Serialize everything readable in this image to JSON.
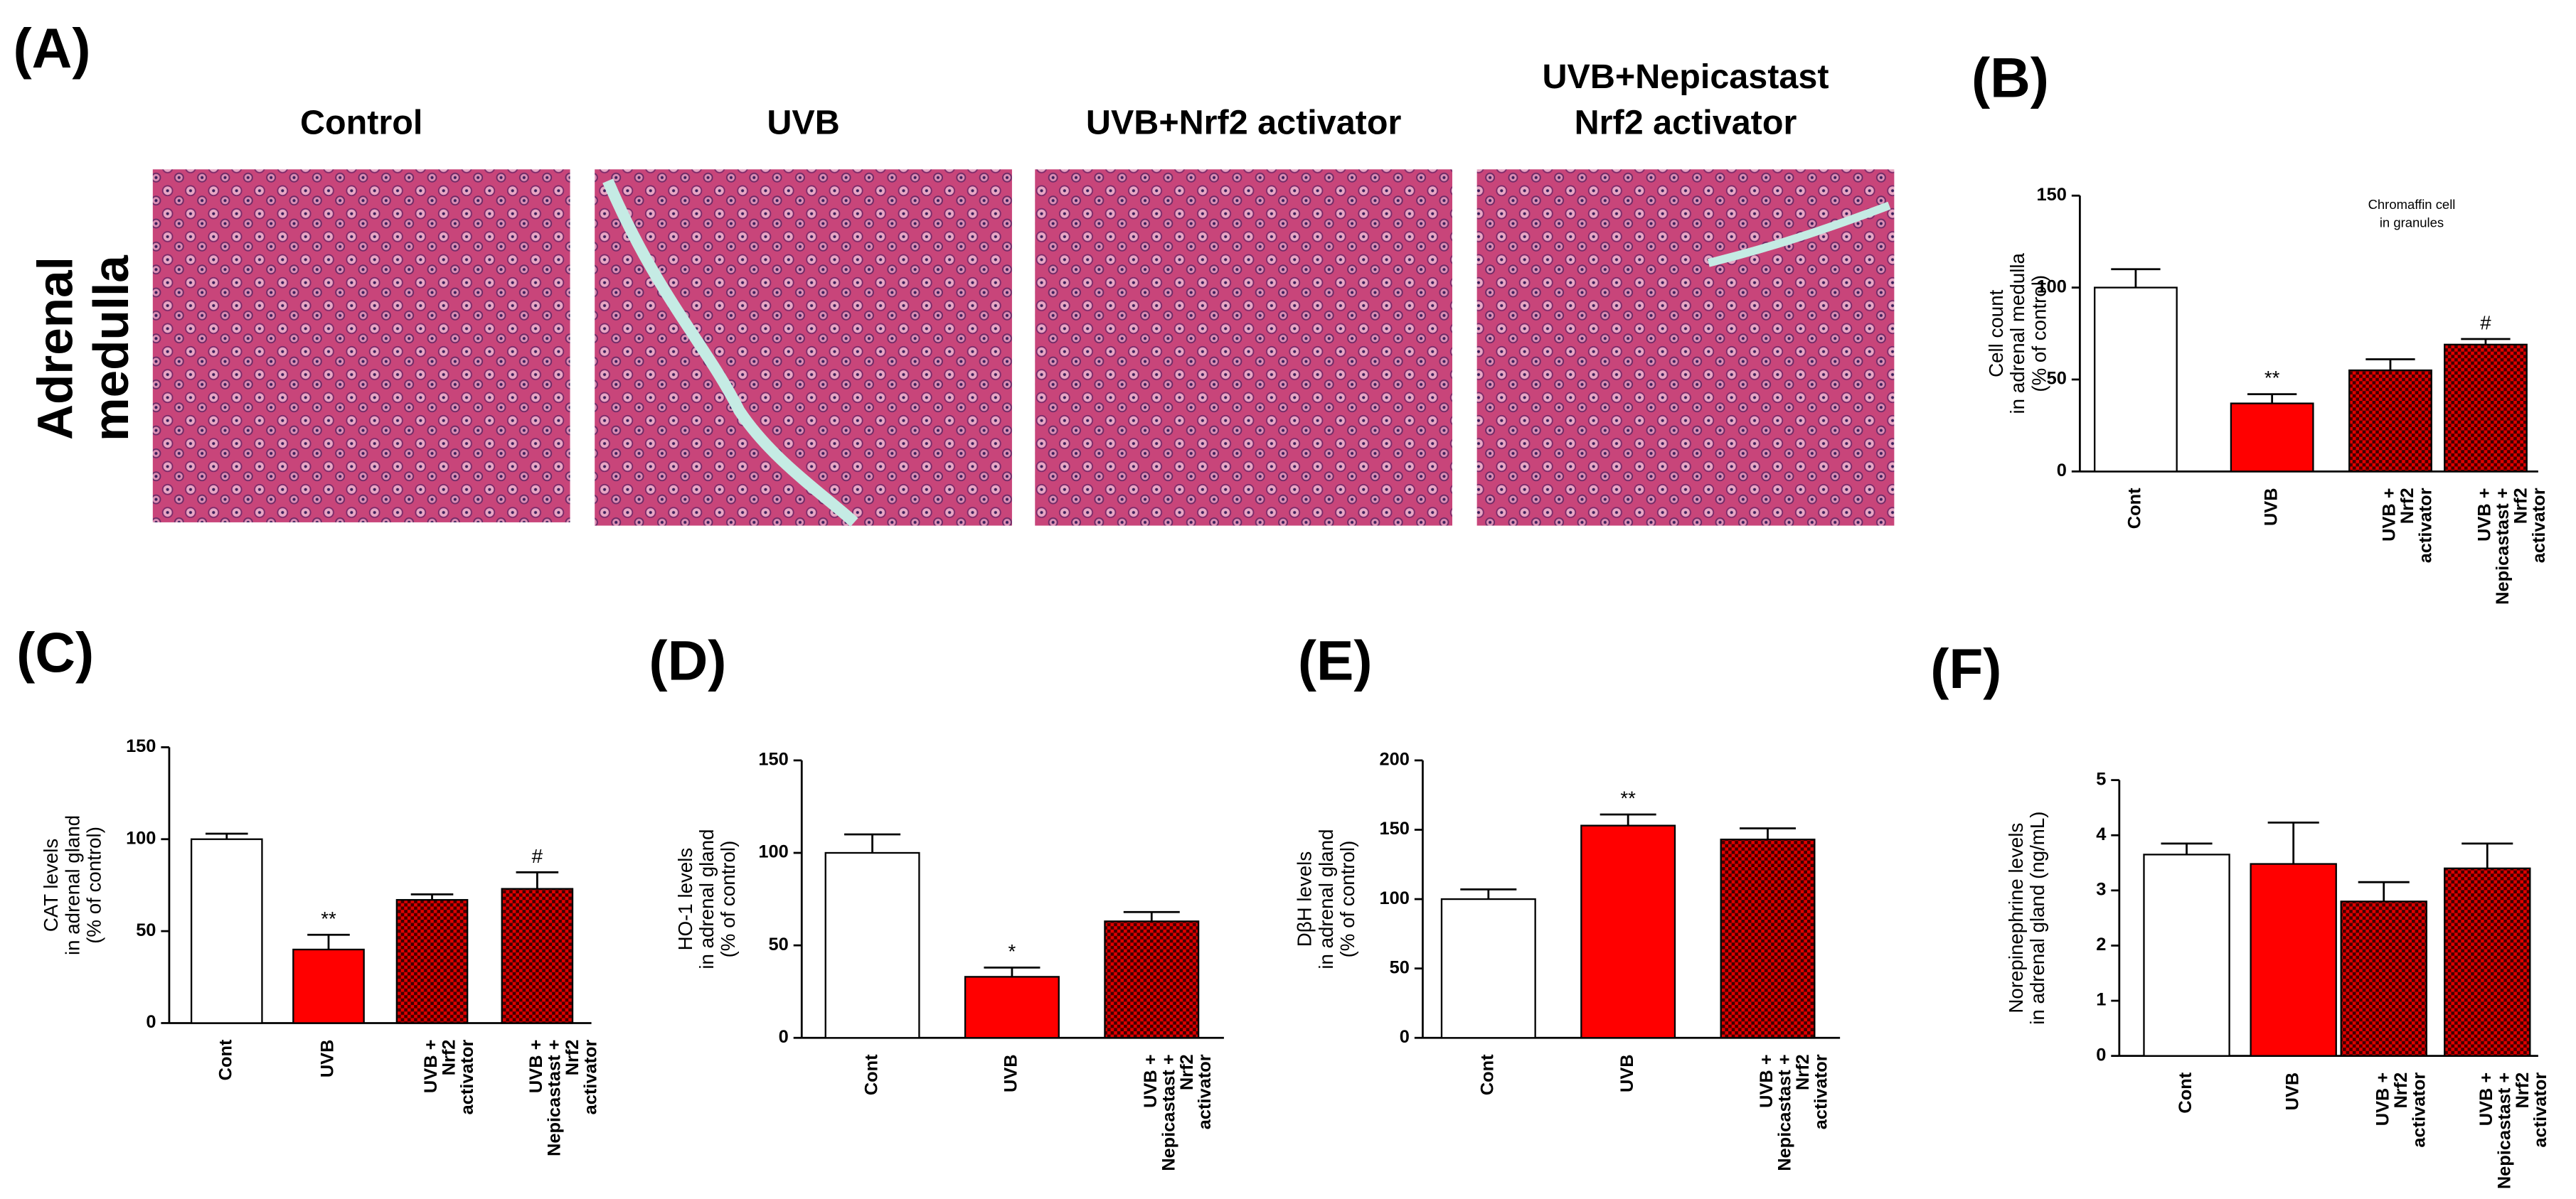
{
  "figure": {
    "panel": "(A)",
    "row_label": [
      "Adrenal",
      "medulla"
    ],
    "images": [
      {
        "title": [
          "Control"
        ]
      },
      {
        "title": [
          "UVB"
        ]
      },
      {
        "title": [
          "UVB+Nrf2 activator"
        ]
      },
      {
        "title": [
          "UVB+Nepicastast",
          "Nrf2 activator"
        ]
      }
    ]
  },
  "chart_data": [
    {
      "type": "bar",
      "panel": "(B)",
      "y_label": [
        "Cell count",
        "in adrenal medulla",
        "(% of control)"
      ],
      "note": [
        "Chromaffin cell",
        "in granules"
      ],
      "categories": [
        [
          "Cont"
        ],
        [
          "UVB"
        ],
        [
          "UVB +",
          "Nrf2",
          "activator"
        ],
        [
          "UVB +",
          "Nepicastast +",
          "Nrf2",
          "activator"
        ]
      ],
      "values": [
        100,
        37,
        55,
        69
      ],
      "errors": [
        10,
        5,
        6,
        3
      ],
      "marks": [
        null,
        "**",
        null,
        "#"
      ],
      "colors": [
        "#ffffff",
        "#ff0000",
        "#ff0000",
        "#ff0000"
      ],
      "patterns": [
        "none",
        "none",
        "checker",
        "checker"
      ],
      "ylim": [
        0,
        150
      ],
      "yticks": [
        0,
        50,
        100,
        150
      ]
    },
    {
      "type": "bar",
      "panel": "(C)",
      "y_label": [
        "CAT levels",
        "in adrenal gland",
        "(% of control)"
      ],
      "categories": [
        [
          "Cont"
        ],
        [
          "UVB"
        ],
        [
          "UVB +",
          "Nrf2",
          "activator"
        ],
        [
          "UVB +",
          "Nepicastast +",
          "Nrf2",
          "activator"
        ]
      ],
      "values": [
        100,
        40,
        67,
        73
      ],
      "errors": [
        3,
        8,
        3,
        9
      ],
      "marks": [
        null,
        "**",
        null,
        "#"
      ],
      "colors": [
        "#ffffff",
        "#ff0000",
        "#ff0000",
        "#ff0000"
      ],
      "patterns": [
        "none",
        "none",
        "checker",
        "checker"
      ],
      "ylim": [
        0,
        150
      ],
      "yticks": [
        0,
        50,
        100,
        150
      ]
    },
    {
      "type": "bar",
      "panel": "(D)",
      "y_label": [
        "HO-1 levels",
        "in adrenal gland",
        "(% of control)"
      ],
      "categories": [
        [
          "Cont"
        ],
        [
          "UVB"
        ],
        [
          "UVB +",
          "Nepicastast +",
          "Nrf2",
          "activator"
        ]
      ],
      "values": [
        100,
        33,
        63
      ],
      "errors": [
        10,
        5,
        5
      ],
      "marks": [
        null,
        "*",
        null
      ],
      "colors": [
        "#ffffff",
        "#ff0000",
        "#ff0000"
      ],
      "patterns": [
        "none",
        "none",
        "checker"
      ],
      "ylim": [
        0,
        150
      ],
      "yticks": [
        0,
        50,
        100,
        150
      ]
    },
    {
      "type": "bar",
      "panel": "(E)",
      "y_label": [
        "DβH levels",
        "in adrenal gland",
        "(% of control)"
      ],
      "categories": [
        [
          "Cont"
        ],
        [
          "UVB"
        ],
        [
          "UVB +",
          "Nepicastast +",
          "Nrf2",
          "activator"
        ]
      ],
      "values": [
        100,
        153,
        143
      ],
      "errors": [
        7,
        8,
        8
      ],
      "marks": [
        null,
        "**",
        null
      ],
      "colors": [
        "#ffffff",
        "#ff0000",
        "#ff0000"
      ],
      "patterns": [
        "none",
        "none",
        "checker"
      ],
      "ylim": [
        0,
        200
      ],
      "yticks": [
        0,
        50,
        100,
        150,
        200
      ]
    },
    {
      "type": "bar",
      "panel": "(F)",
      "y_label": [
        "Norepinephrine levels",
        "in adrenal gland (ng/mL)"
      ],
      "categories": [
        [
          "Cont"
        ],
        [
          "UVB"
        ],
        [
          "UVB +",
          "Nrf2",
          "activator"
        ],
        [
          "UVB +",
          "Nepicastast +",
          "Nrf2",
          "activator"
        ]
      ],
      "values": [
        3.65,
        3.48,
        2.8,
        3.4
      ],
      "errors": [
        0.2,
        0.75,
        0.35,
        0.45
      ],
      "marks": [
        null,
        null,
        null,
        null
      ],
      "colors": [
        "#ffffff",
        "#ff0000",
        "#ff0000",
        "#ff0000"
      ],
      "patterns": [
        "none",
        "none",
        "checker",
        "checker"
      ],
      "ylim": [
        0,
        5
      ],
      "yticks": [
        0,
        1,
        2,
        3,
        4,
        5
      ]
    }
  ]
}
